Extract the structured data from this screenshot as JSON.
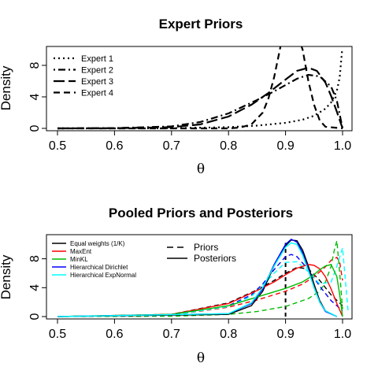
{
  "chart_data": [
    {
      "type": "line",
      "title": "Expert Priors",
      "xlabel": "θ",
      "ylabel": "Density",
      "xlim": [
        0.5,
        1.0
      ],
      "ylim": [
        0,
        10
      ],
      "xticks": [
        "0.5",
        "0.6",
        "0.7",
        "0.8",
        "0.9",
        "1.0"
      ],
      "yticks": [
        "0",
        "4",
        "8"
      ],
      "legend_position": "top-left",
      "series": [
        {
          "name": "Expert 1",
          "dash": "dotted",
          "x": [
            0.5,
            0.6,
            0.7,
            0.8,
            0.85,
            0.9,
            0.93,
            0.95,
            0.97,
            0.98,
            0.99,
            0.995,
            0.999
          ],
          "y": [
            0,
            0,
            0.02,
            0.15,
            0.35,
            0.7,
            1.1,
            1.6,
            2.5,
            3.3,
            4.8,
            6.5,
            9.8
          ]
        },
        {
          "name": "Expert 2",
          "dash": "dot-dash",
          "x": [
            0.5,
            0.6,
            0.7,
            0.75,
            0.8,
            0.85,
            0.88,
            0.9,
            0.92,
            0.94,
            0.96,
            0.98,
            0.99,
            1.0
          ],
          "y": [
            0,
            0.03,
            0.25,
            0.8,
            1.9,
            3.6,
            4.7,
            5.5,
            6.3,
            6.8,
            6.6,
            5.3,
            3.5,
            0
          ]
        },
        {
          "name": "Expert 3",
          "dash": "long-dash",
          "x": [
            0.5,
            0.6,
            0.7,
            0.75,
            0.8,
            0.84,
            0.87,
            0.9,
            0.92,
            0.94,
            0.955,
            0.97,
            0.98,
            0.99,
            1.0
          ],
          "y": [
            0,
            0.02,
            0.15,
            0.5,
            1.5,
            3.0,
            4.5,
            6.2,
            7.3,
            7.7,
            7.3,
            5.8,
            4.1,
            2.1,
            0
          ]
        },
        {
          "name": "Expert 4",
          "dash": "dashed",
          "x": [
            0.5,
            0.8,
            0.82,
            0.84,
            0.86,
            0.87,
            0.88,
            0.89,
            0.895,
            0.9,
            0.91,
            0.92,
            0.925,
            0.93,
            0.935,
            0.94,
            0.95,
            0.96,
            0.97,
            1.0
          ],
          "y": [
            0,
            0,
            0.1,
            0.5,
            2.0,
            3.8,
            6.5,
            10,
            12,
            13,
            13,
            12,
            11,
            10,
            8,
            6,
            3,
            1,
            0.2,
            0
          ]
        }
      ]
    },
    {
      "type": "line",
      "title": "Pooled Priors and Posteriors",
      "xlabel": "θ",
      "ylabel": "Density",
      "xlim": [
        0.5,
        1.0
      ],
      "ylim": [
        0,
        11
      ],
      "xticks": [
        "0.5",
        "0.6",
        "0.7",
        "0.8",
        "0.9",
        "1.0"
      ],
      "yticks": [
        "0",
        "4",
        "8"
      ],
      "reference_line": {
        "x": 0.9,
        "style": "dashed"
      },
      "legend_position": "top-left",
      "line_type_legend": {
        "position": "top-center",
        "entries": [
          {
            "name": "Priors",
            "dash": "dashed"
          },
          {
            "name": "Posteriors",
            "dash": "solid"
          }
        ]
      },
      "series": [
        {
          "name": "Equal weights (1/K)",
          "color": "#000000",
          "prior": {
            "x": [
              0.5,
              0.7,
              0.8,
              0.85,
              0.88,
              0.9,
              0.92,
              0.94,
              0.96,
              0.98,
              1.0
            ],
            "y": [
              0,
              0.3,
              1.9,
              3.7,
              5.0,
              6.0,
              6.8,
              6.6,
              5.0,
              3.0,
              1.5
            ]
          },
          "posterior": {
            "x": [
              0.5,
              0.8,
              0.84,
              0.86,
              0.88,
              0.9,
              0.91,
              0.92,
              0.93,
              0.94,
              0.95,
              0.96,
              0.97,
              0.99
            ],
            "y": [
              0,
              0.3,
              1.5,
              3.5,
              7.0,
              9.8,
              10.6,
              10.5,
              9.2,
              7.0,
              4.5,
              2.2,
              0.8,
              0
            ]
          }
        },
        {
          "name": "MaxEnt",
          "color": "#ff0000",
          "prior": {
            "x": [
              0.5,
              0.7,
              0.8,
              0.85,
              0.9,
              0.93,
              0.95,
              0.97,
              0.98,
              0.99,
              0.995,
              1.0
            ],
            "y": [
              0,
              0.2,
              1.3,
              2.3,
              3.5,
              4.5,
              5.5,
              6.9,
              7.8,
              8.2,
              7.5,
              5.0
            ]
          },
          "posterior": {
            "x": [
              0.5,
              0.7,
              0.8,
              0.85,
              0.88,
              0.9,
              0.92,
              0.94,
              0.95,
              0.96,
              0.97,
              0.98,
              0.99,
              1.0
            ],
            "y": [
              0,
              0.3,
              1.8,
              3.6,
              4.8,
              5.8,
              6.7,
              7.2,
              7.1,
              6.6,
              5.5,
              3.8,
              1.8,
              0
            ]
          }
        },
        {
          "name": "MinKL",
          "color": "#00bb00",
          "prior": {
            "x": [
              0.5,
              0.7,
              0.8,
              0.85,
              0.9,
              0.94,
              0.96,
              0.97,
              0.98,
              0.985,
              0.99,
              0.995,
              1.0
            ],
            "y": [
              0,
              0.05,
              0.3,
              0.7,
              1.4,
              2.5,
              3.5,
              4.8,
              7.0,
              9.0,
              10.5,
              6.0,
              1.0
            ]
          },
          "posterior": {
            "x": [
              0.5,
              0.7,
              0.8,
              0.85,
              0.9,
              0.93,
              0.95,
              0.96,
              0.97,
              0.98,
              0.99,
              0.995,
              1.0
            ],
            "y": [
              0,
              0.3,
              1.5,
              2.7,
              3.9,
              4.8,
              5.8,
              6.5,
              7.0,
              7.2,
              5.5,
              3.0,
              0
            ]
          }
        },
        {
          "name": "Hierarchical Dirichlet",
          "color": "#0000ff",
          "prior": {
            "x": [
              0.5,
              0.7,
              0.8,
              0.84,
              0.86,
              0.88,
              0.9,
              0.91,
              0.92,
              0.94,
              0.96,
              0.98,
              1.0
            ],
            "y": [
              0,
              0.2,
              1.5,
              3.0,
              4.5,
              6.5,
              8.3,
              8.6,
              8.3,
              6.5,
              4.2,
              2.2,
              0.8
            ]
          },
          "posterior": {
            "x": [
              0.5,
              0.8,
              0.84,
              0.86,
              0.88,
              0.9,
              0.91,
              0.92,
              0.93,
              0.94,
              0.95,
              0.96,
              0.97,
              0.99
            ],
            "y": [
              0,
              0.4,
              1.8,
              3.8,
              7.2,
              10.0,
              10.7,
              10.3,
              8.8,
              6.5,
              4.0,
              2.0,
              0.7,
              0
            ]
          }
        },
        {
          "name": "Hierarchical ExpNormal",
          "color": "#00ffff",
          "prior": {
            "x": [
              0.5,
              0.7,
              0.8,
              0.84,
              0.86,
              0.88,
              0.9,
              0.92,
              0.94,
              0.96,
              0.98,
              0.99,
              1.0,
              1.005,
              1.01
            ],
            "y": [
              0,
              0.2,
              1.4,
              2.8,
              4.3,
              6.0,
              7.5,
              7.6,
              6.2,
              4.5,
              4.8,
              7.0,
              9.5,
              5.0,
              0.5
            ]
          },
          "posterior": {
            "x": [
              0.5,
              0.8,
              0.84,
              0.86,
              0.88,
              0.9,
              0.91,
              0.92,
              0.93,
              0.94,
              0.95,
              0.96,
              0.97,
              0.99
            ],
            "y": [
              0,
              0.4,
              1.9,
              4.0,
              7.0,
              9.6,
              10.2,
              10.0,
              8.5,
              6.3,
              4.0,
              2.0,
              0.8,
              0
            ]
          }
        }
      ]
    }
  ]
}
